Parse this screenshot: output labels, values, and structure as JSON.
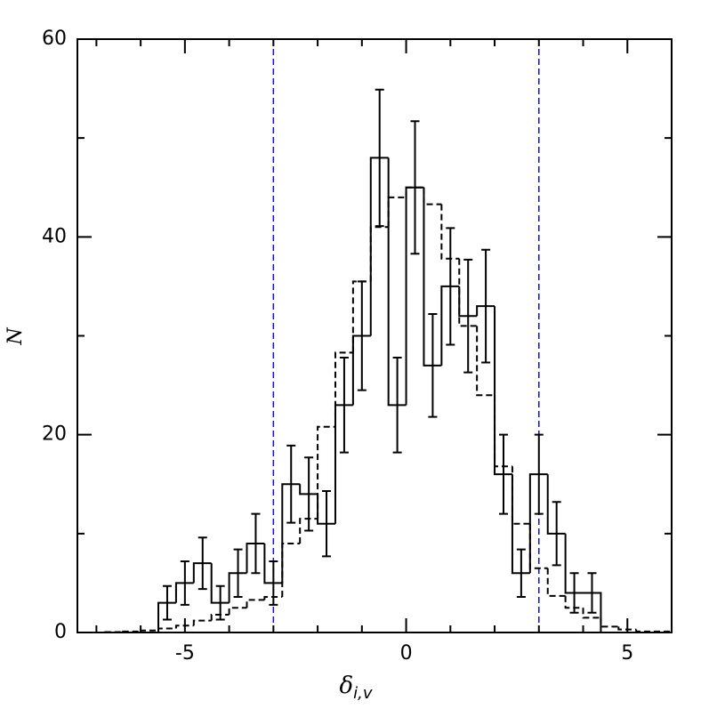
{
  "chart_data": {
    "type": "histogram",
    "xlabel": "δ",
    "xlabel_sub": "i,v",
    "ylabel": "N",
    "xlim": [
      -7.43,
      6
    ],
    "ylim": [
      0,
      60
    ],
    "xticks": [
      -5,
      0,
      5
    ],
    "yticks": [
      0,
      20,
      40,
      60
    ],
    "xminor_ticks": [
      -7,
      -6,
      -4,
      -3,
      -2,
      -1,
      1,
      2,
      3,
      4,
      6
    ],
    "yminor_ticks": [
      10,
      30,
      50
    ],
    "vlines": [
      -3,
      3
    ],
    "vline_color": "#1010d0",
    "series": [
      {
        "style": "solid",
        "color": "#000000",
        "bins": [
          -5.6,
          -5.2,
          -4.8,
          -4.4,
          -4.0,
          -3.6,
          -3.2,
          -2.8,
          -2.4,
          -2.0,
          -1.6,
          -1.2,
          -0.8,
          -0.4,
          0,
          0.4,
          0.8,
          1.2,
          1.6,
          2.0,
          2.4,
          2.8,
          3.2,
          3.6,
          4.0,
          4.4
        ],
        "values": [
          3,
          5,
          7,
          3,
          6,
          9,
          5,
          15,
          14,
          11,
          23,
          30,
          48,
          23,
          45,
          27,
          35,
          32,
          33,
          16,
          6,
          16,
          10,
          4,
          4
        ],
        "errors": [
          1.7,
          2.2,
          2.6,
          1.7,
          2.4,
          3,
          2.2,
          3.9,
          3.7,
          3.3,
          4.8,
          5.5,
          6.9,
          4.8,
          6.7,
          5.2,
          5.9,
          5.7,
          5.7,
          4,
          2.4,
          4,
          3.2,
          2,
          2
        ]
      },
      {
        "style": "dashed",
        "color": "#000000",
        "bins": [
          -7.2,
          -6.8,
          -6.4,
          -6.0,
          -5.6,
          -5.2,
          -4.8,
          -4.4,
          -4.0,
          -3.6,
          -3.2,
          -2.8,
          -2.4,
          -2.0,
          -1.6,
          -1.2,
          -0.8,
          -0.4,
          0,
          0.4,
          0.8,
          1.2,
          1.6,
          2.0,
          2.4,
          2.8,
          3.2,
          3.6,
          4.0,
          4.4,
          4.8,
          5.2,
          5.6,
          6.0
        ],
        "values": [
          0,
          0.05,
          0.1,
          0.2,
          0.4,
          0.7,
          1.2,
          1.8,
          2.5,
          3.3,
          3.6,
          9,
          11.5,
          20.8,
          28.3,
          35.5,
          41,
          44,
          45,
          43.3,
          37.8,
          31,
          24,
          16.8,
          11,
          6.5,
          3.7,
          2.5,
          1.5,
          0.6,
          0.3,
          0.1,
          0.1
        ]
      }
    ]
  }
}
